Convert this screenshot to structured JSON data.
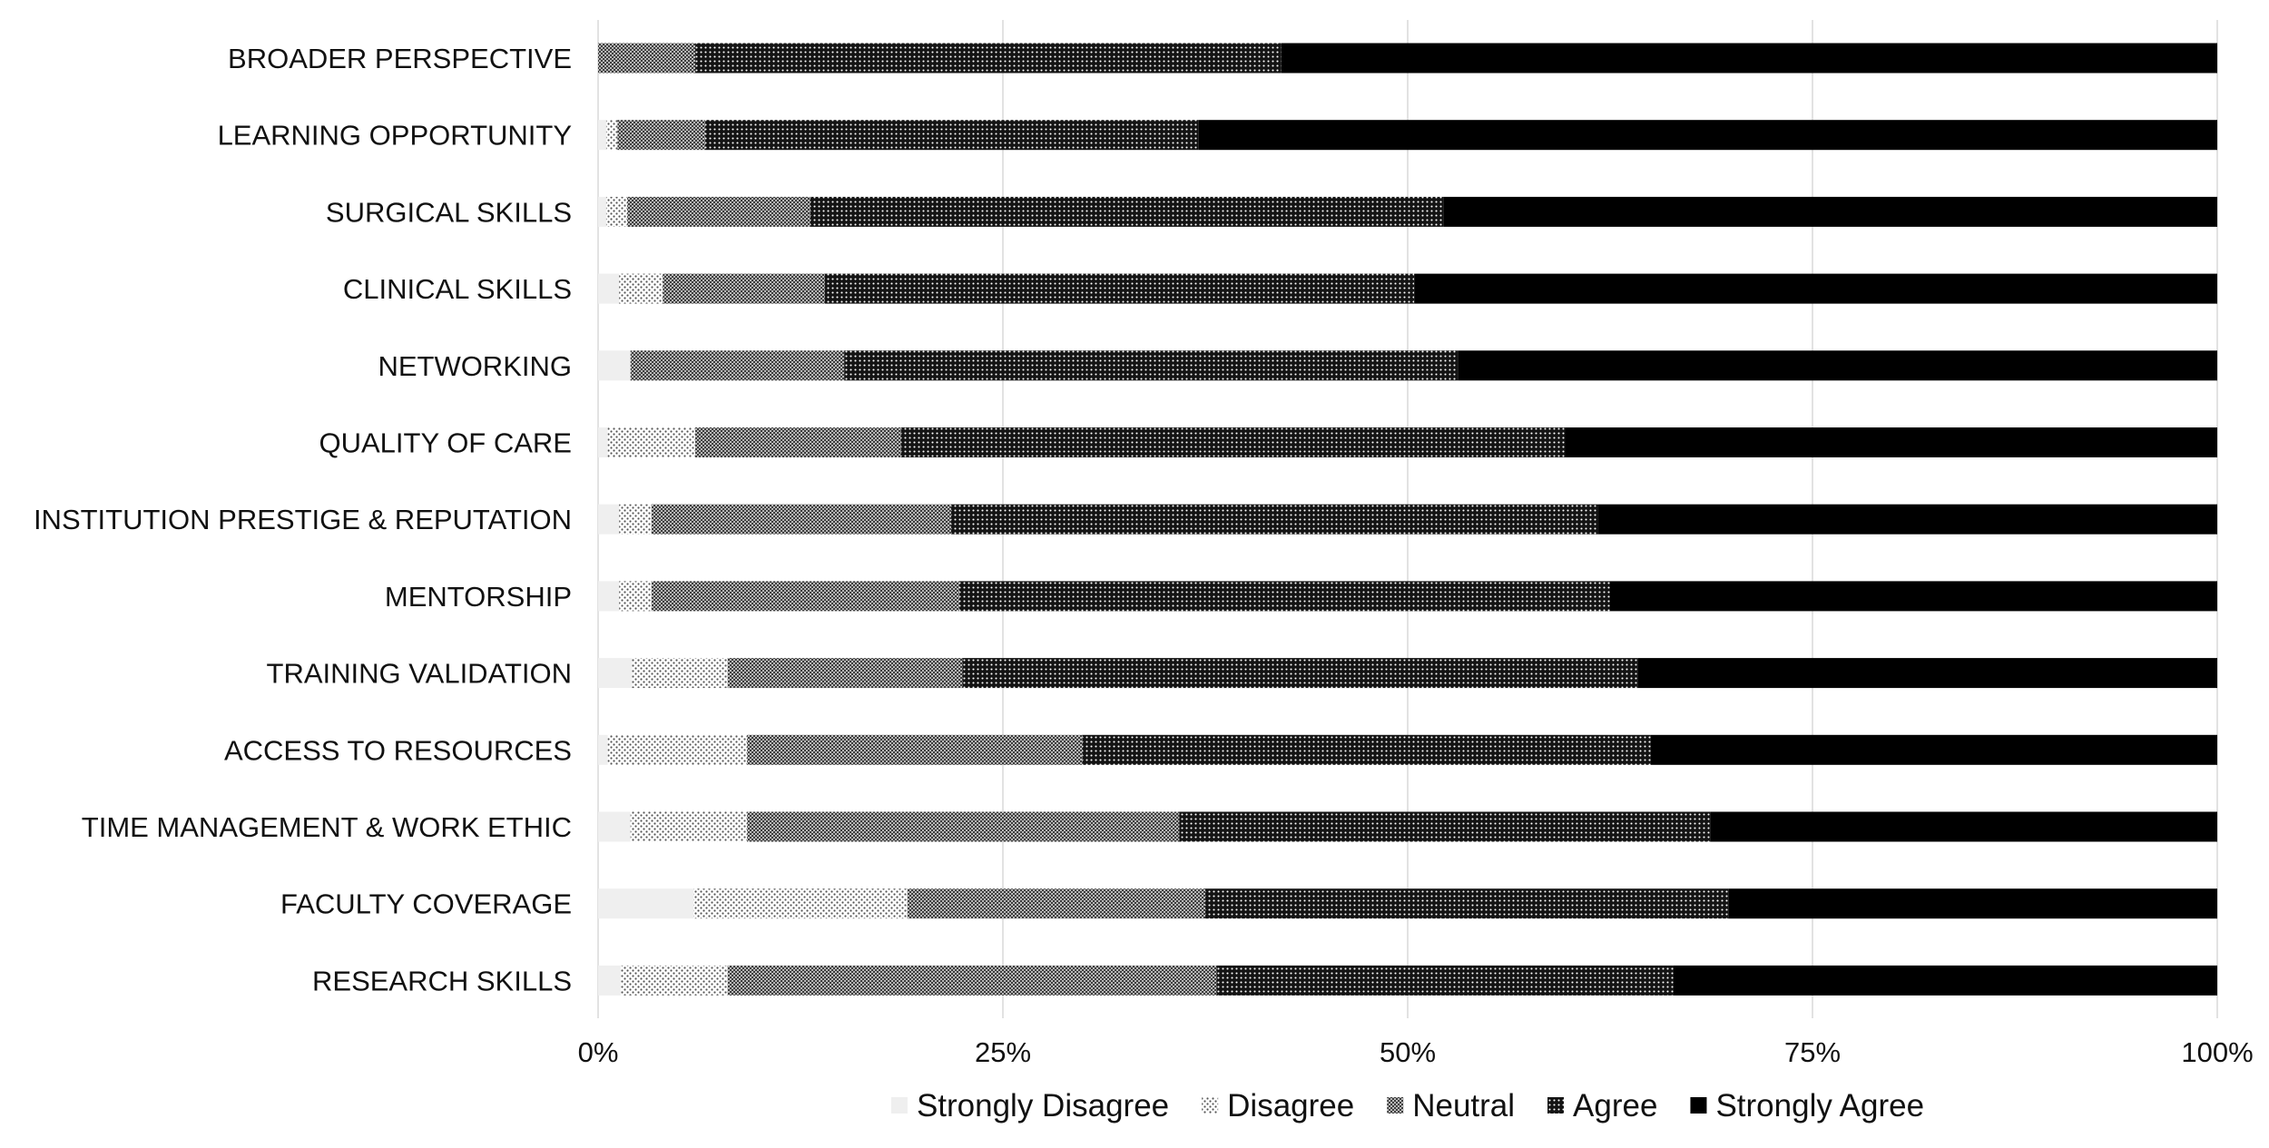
{
  "chart_data": {
    "type": "bar",
    "orientation": "horizontal",
    "stacked": true,
    "normalized": true,
    "categories": [
      "BROADER PERSPECTIVE",
      "LEARNING OPPORTUNITY",
      "SURGICAL SKILLS",
      "CLINICAL SKILLS",
      "NETWORKING",
      "QUALITY OF CARE",
      "INSTITUTION PRESTIGE & REPUTATION",
      "MENTORSHIP",
      "TRAINING VALIDATION",
      "ACCESS TO RESOURCES",
      "TIME MANAGEMENT & WORK ETHIC",
      "FACULTY COVERAGE",
      "RESEARCH SKILLS"
    ],
    "series": [
      {
        "name": "Strongly Disagree",
        "pattern": "light-solid",
        "color": "#f0f0f0",
        "values": [
          0,
          0.5,
          0.5,
          1.3,
          2.0,
          0.6,
          1.3,
          1.3,
          2.1,
          0.6,
          2.0,
          5.9,
          1.4
        ]
      },
      {
        "name": "Disagree",
        "pattern": "sparse-dots",
        "color": "#ffffff",
        "values": [
          0,
          0.7,
          1.3,
          2.7,
          0,
          5.4,
          2.0,
          2.0,
          5.9,
          8.6,
          7.2,
          13.2,
          6.6
        ]
      },
      {
        "name": "Neutral",
        "pattern": "dense-dots",
        "color": "#8a8a8a",
        "values": [
          6.0,
          5.4,
          11.3,
          10.0,
          13.2,
          12.7,
          18.5,
          19.0,
          14.5,
          20.7,
          26.7,
          18.4,
          30.2
        ]
      },
      {
        "name": "Agree",
        "pattern": "checker",
        "color": "#2a2a2a",
        "values": [
          36.2,
          30.5,
          39.1,
          36.4,
          37.9,
          41.0,
          40.0,
          40.2,
          41.7,
          35.1,
          32.8,
          32.3,
          28.2
        ]
      },
      {
        "name": "Strongly Agree",
        "pattern": "solid",
        "color": "#000000",
        "values": [
          57.8,
          62.9,
          47.8,
          49.6,
          46.9,
          40.3,
          38.2,
          37.5,
          35.8,
          35.0,
          31.3,
          30.2,
          33.6
        ]
      }
    ],
    "x_ticks": [
      "0%",
      "25%",
      "50%",
      "75%",
      "100%"
    ],
    "xlim": [
      0,
      100
    ],
    "title": "",
    "xlabel": "",
    "ylabel": "",
    "grid": "vertical",
    "legend": {
      "position": "bottom"
    }
  }
}
